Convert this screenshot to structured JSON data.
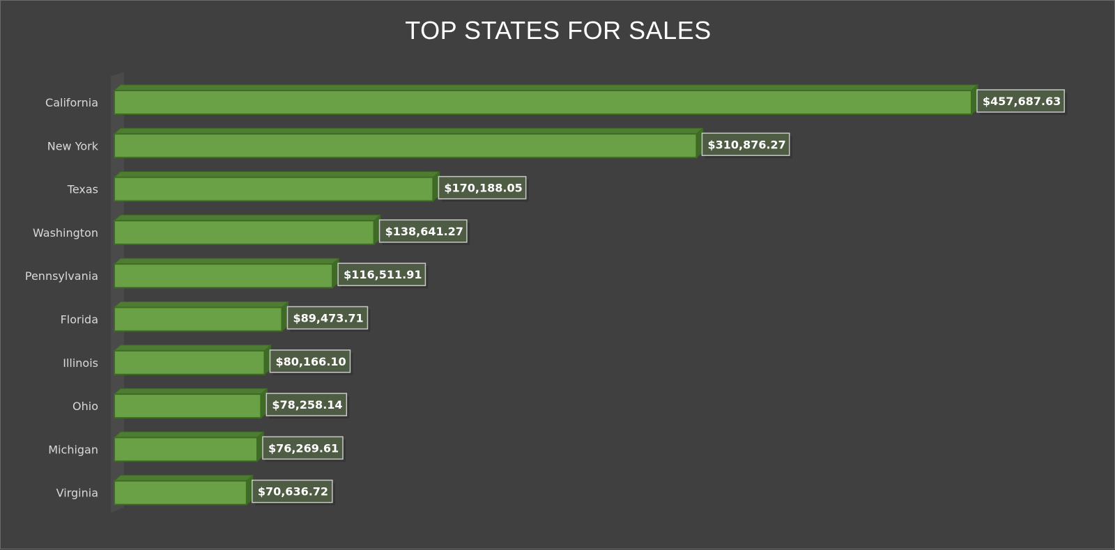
{
  "chart_data": {
    "type": "bar",
    "orientation": "horizontal",
    "title": "TOP STATES FOR SALES",
    "categories": [
      "California",
      "New York",
      "Texas",
      "Washington",
      "Pennsylvania",
      "Florida",
      "Illinois",
      "Ohio",
      "Michigan",
      "Virginia"
    ],
    "values": [
      457687.63,
      310876.27,
      170188.05,
      138641.27,
      116511.91,
      89473.71,
      80166.1,
      78258.14,
      76269.61,
      70636.72
    ],
    "data_labels": [
      "$457,687.63",
      "$310,876.27",
      "$170,188.05",
      "$138,641.27",
      "$116,511.91",
      "$89,473.71",
      "$80,166.10",
      "$78,258.14",
      "$76,269.61",
      "$70,636.72"
    ],
    "xlim": [
      0,
      457687.63
    ],
    "grid": false,
    "legend": "none",
    "style": "3d"
  },
  "colors": {
    "background": "#404040",
    "bar_front": "#6aa046",
    "bar_top": "#4e7c33",
    "bar_side": "#3f6a28",
    "bar_edge": "#3d6b22",
    "label_box_fill": "#4e5c44",
    "label_box_stroke": "#c8c8c8",
    "wall": "#4a4a4a"
  }
}
